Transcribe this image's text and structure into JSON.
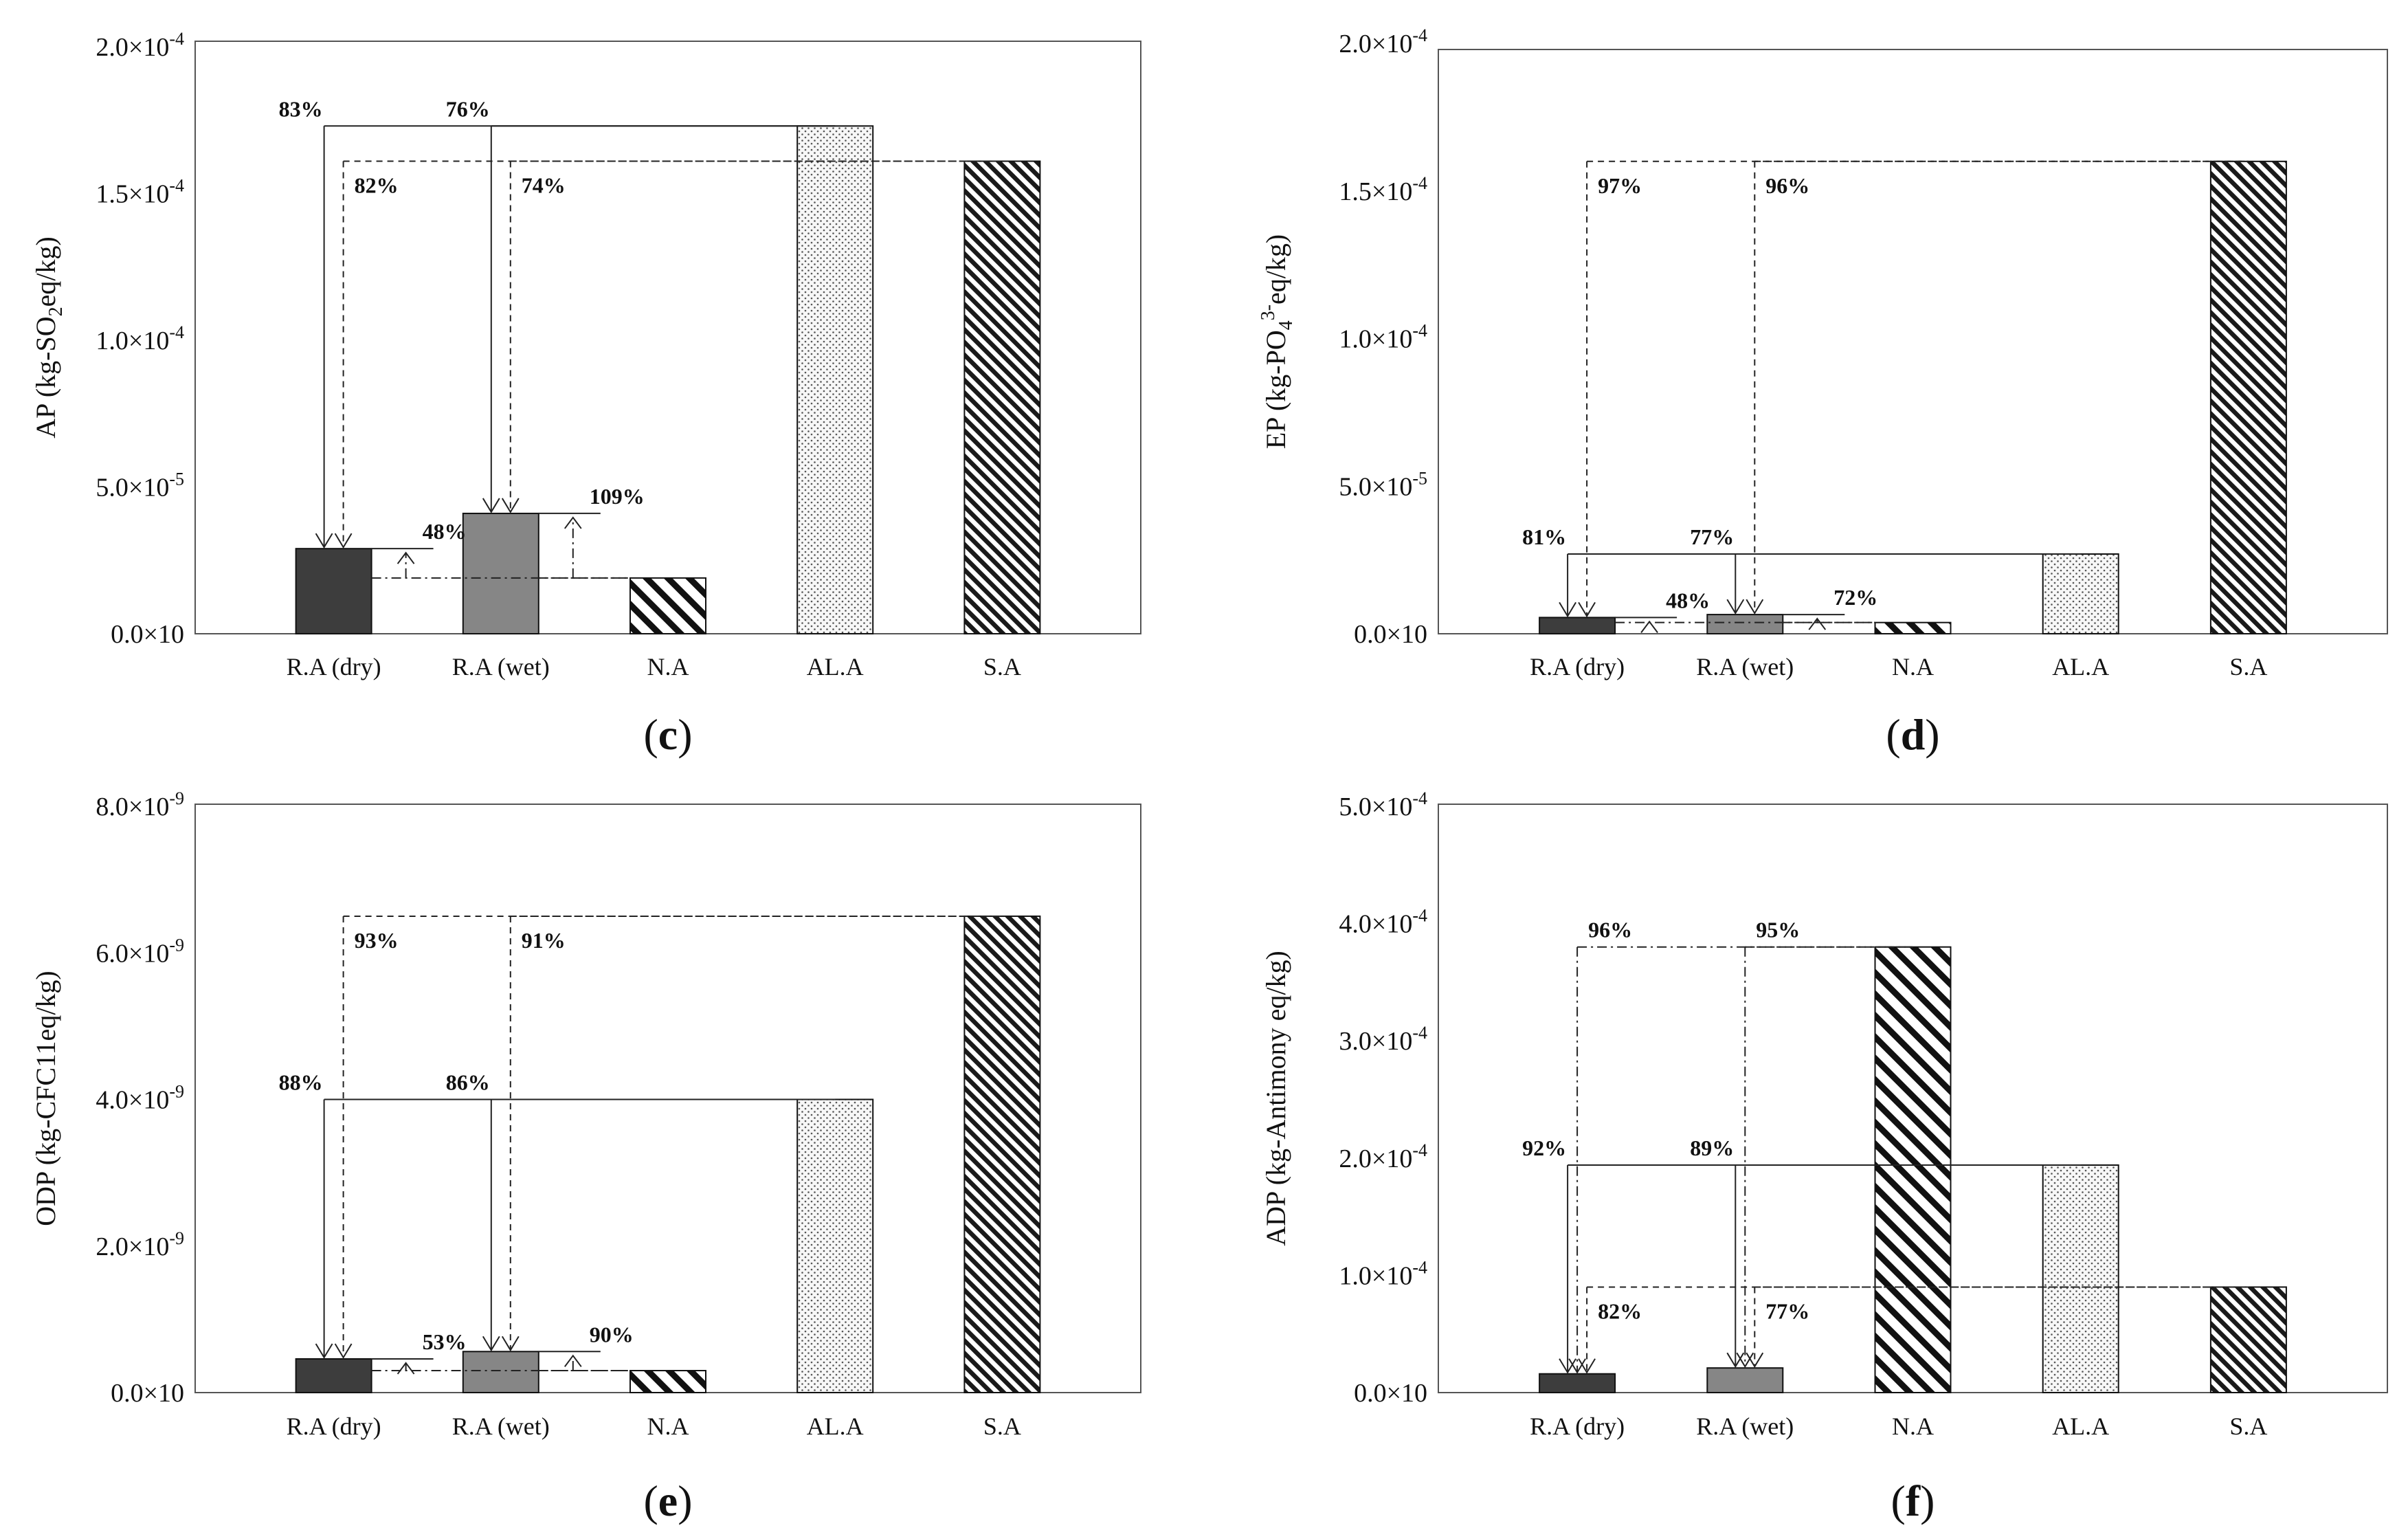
{
  "chart_data": [
    {
      "type": "bar",
      "panel": "(c)",
      "panel_letter": "c",
      "ylabel": "AP (kg-SO2eq/kg)",
      "ylabel_parts": [
        "AP (kg-SO",
        "2",
        "eq/kg)"
      ],
      "ylim": [
        0,
        0.0002
      ],
      "yticks": [
        {
          "value": 0,
          "label": "0.0×10"
        },
        {
          "value": 5e-05,
          "label": "5.0×10",
          "exp": "-5"
        },
        {
          "value": 0.0001,
          "label": "1.0×10",
          "exp": "-4"
        },
        {
          "value": 0.00015,
          "label": "1.5×10",
          "exp": "-4"
        },
        {
          "value": 0.0002,
          "label": "2.0×10",
          "exp": "-4"
        }
      ],
      "categories": [
        "R.A (dry)",
        "R.A (wet)",
        "N.A",
        "AL.A",
        "S.A"
      ],
      "values": [
        2.9e-05,
        4.1e-05,
        1.9e-05,
        0.000173,
        0.000161
      ],
      "annotations": [
        {
          "from": 3,
          "to": 0,
          "style": "solid",
          "level": 0.000173,
          "text": "83%"
        },
        {
          "from": 3,
          "to": 1,
          "style": "solid",
          "level": 0.000173,
          "text": "76%"
        },
        {
          "from": 4,
          "to": 0,
          "style": "dashed",
          "level": 0.000161,
          "text": "82%"
        },
        {
          "from": 4,
          "to": 1,
          "style": "dashed",
          "level": 0.000161,
          "text": "74%"
        },
        {
          "from": 2,
          "to": 0,
          "style": "dashdot",
          "level": 2.9e-05,
          "text": "48%",
          "up": true
        },
        {
          "from": 2,
          "to": 1,
          "style": "dashdot",
          "level": 4.1e-05,
          "text": "109%",
          "up": true
        }
      ]
    },
    {
      "type": "bar",
      "panel": "(d)",
      "panel_letter": "d",
      "ylabel": "EP (kg-PO43-eq/kg)",
      "ylabel_parts": [
        "EP (kg-PO",
        "4",
        "3-",
        "eq/kg)"
      ],
      "ylim": [
        0,
        0.0002
      ],
      "yticks": [
        {
          "value": 0,
          "label": "0.0×10"
        },
        {
          "value": 5e-05,
          "label": "5.0×10",
          "exp": "-5"
        },
        {
          "value": 0.0001,
          "label": "1.0×10",
          "exp": "-4"
        },
        {
          "value": 0.00015,
          "label": "1.5×10",
          "exp": "-4"
        },
        {
          "value": 0.0002,
          "label": "2.0×10",
          "exp": "-4"
        }
      ],
      "categories": [
        "R.A (dry)",
        "R.A (wet)",
        "N.A",
        "AL.A",
        "S.A"
      ],
      "values": [
        5.5e-06,
        6.5e-06,
        3.8e-06,
        2.7e-05,
        0.00016
      ],
      "annotations": [
        {
          "from": 3,
          "to": 0,
          "style": "solid",
          "level": 2.7e-05,
          "text": "81%"
        },
        {
          "from": 3,
          "to": 1,
          "style": "solid",
          "level": 2.7e-05,
          "text": "77%"
        },
        {
          "from": 4,
          "to": 0,
          "style": "dashed",
          "level": 0.00016,
          "text": "97%"
        },
        {
          "from": 4,
          "to": 1,
          "style": "dashed",
          "level": 0.00016,
          "text": "96%"
        },
        {
          "from": 2,
          "to": 0,
          "style": "dashdot",
          "level": 5.5e-06,
          "text": "48%",
          "up": true
        },
        {
          "from": 2,
          "to": 1,
          "style": "dashdot",
          "level": 6.5e-06,
          "text": "72%",
          "up": true
        }
      ]
    },
    {
      "type": "bar",
      "panel": "(e)",
      "panel_letter": "e",
      "ylabel": "ODP (kg-CFC11eq/kg)",
      "ylabel_parts": [
        "ODP (kg-CFC11eq/kg)"
      ],
      "ylim": [
        0,
        8e-09
      ],
      "yticks": [
        {
          "value": 0,
          "label": "0.0×10"
        },
        {
          "value": 2e-09,
          "label": "2.0×10",
          "exp": "-9"
        },
        {
          "value": 4e-09,
          "label": "4.0×10",
          "exp": "-9"
        },
        {
          "value": 6e-09,
          "label": "6.0×10",
          "exp": "-9"
        },
        {
          "value": 8e-09,
          "label": "8.0×10",
          "exp": "-9"
        }
      ],
      "categories": [
        "R.A (dry)",
        "R.A (wet)",
        "N.A",
        "AL.A",
        "S.A"
      ],
      "values": [
        4.6e-10,
        5.6e-10,
        3e-10,
        4e-09,
        6.5e-09
      ],
      "annotations": [
        {
          "from": 3,
          "to": 0,
          "style": "solid",
          "level": 4e-09,
          "text": "88%"
        },
        {
          "from": 3,
          "to": 1,
          "style": "solid",
          "level": 4e-09,
          "text": "86%"
        },
        {
          "from": 4,
          "to": 0,
          "style": "dashed",
          "level": 6.5e-09,
          "text": "93%"
        },
        {
          "from": 4,
          "to": 1,
          "style": "dashed",
          "level": 6.5e-09,
          "text": "91%"
        },
        {
          "from": 2,
          "to": 0,
          "style": "dashdot",
          "level": 4.6e-10,
          "text": "53%",
          "up": true
        },
        {
          "from": 2,
          "to": 1,
          "style": "dashdot",
          "level": 5.6e-10,
          "text": "90%",
          "up": true
        }
      ]
    },
    {
      "type": "bar",
      "panel": "(f)",
      "panel_letter": "f",
      "ylabel": "ADP (kg-Antimony eq/kg)",
      "ylabel_parts": [
        "ADP (kg-Antimony eq/kg)"
      ],
      "ylim": [
        0,
        0.0005
      ],
      "yticks": [
        {
          "value": 0,
          "label": "0.0×10"
        },
        {
          "value": 0.0001,
          "label": "1.0×10",
          "exp": "-4"
        },
        {
          "value": 0.0002,
          "label": "2.0×10",
          "exp": "-4"
        },
        {
          "value": 0.0003,
          "label": "3.0×10",
          "exp": "-4"
        },
        {
          "value": 0.0004,
          "label": "4.0×10",
          "exp": "-4"
        },
        {
          "value": 0.0005,
          "label": "5.0×10",
          "exp": "-4"
        }
      ],
      "categories": [
        "R.A (dry)",
        "R.A (wet)",
        "N.A",
        "AL.A",
        "S.A"
      ],
      "values": [
        1.6e-05,
        2.1e-05,
        0.00038,
        0.000194,
        9e-05
      ],
      "annotations": [
        {
          "from": 3,
          "to": 0,
          "style": "solid",
          "level": 0.000194,
          "text": "92%"
        },
        {
          "from": 3,
          "to": 1,
          "style": "solid",
          "level": 0.000194,
          "text": "89%"
        },
        {
          "from": 4,
          "to": 0,
          "style": "dashed",
          "level": 9e-05,
          "text": "82%"
        },
        {
          "from": 4,
          "to": 1,
          "style": "dashed",
          "level": 9e-05,
          "text": "77%"
        },
        {
          "from": 2,
          "to": 0,
          "style": "dashdot",
          "level": 0.00038,
          "text": "96%"
        },
        {
          "from": 2,
          "to": 1,
          "style": "dashdot",
          "level": 0.00038,
          "text": "95%"
        }
      ]
    }
  ],
  "colors": {
    "ra_dry": "#3d3d3d",
    "ra_wet": "#868686",
    "axis": "#555555",
    "line": "#222222"
  }
}
